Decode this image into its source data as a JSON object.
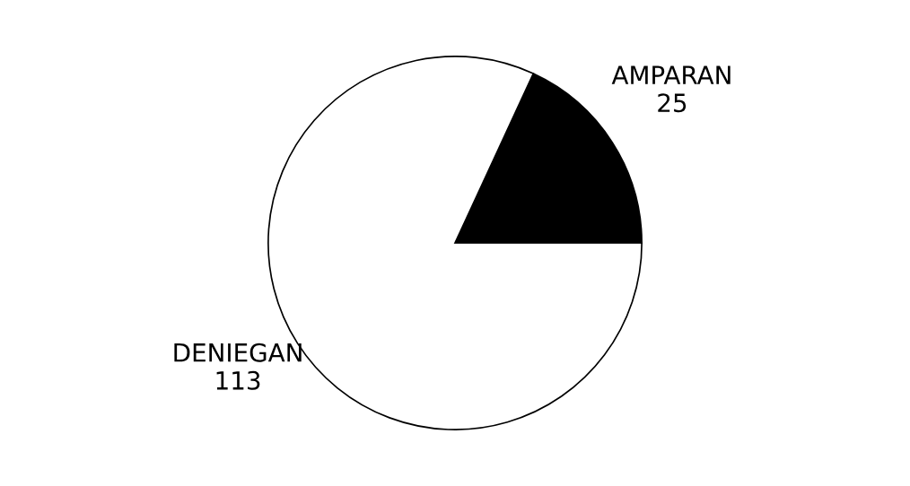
{
  "chart_data": {
    "type": "pie",
    "categories": [
      "AMPARAN",
      "DENIEGAN"
    ],
    "values": [
      25,
      113
    ],
    "colors": [
      "#000000",
      "#ffffff"
    ],
    "data_labels": true
  }
}
